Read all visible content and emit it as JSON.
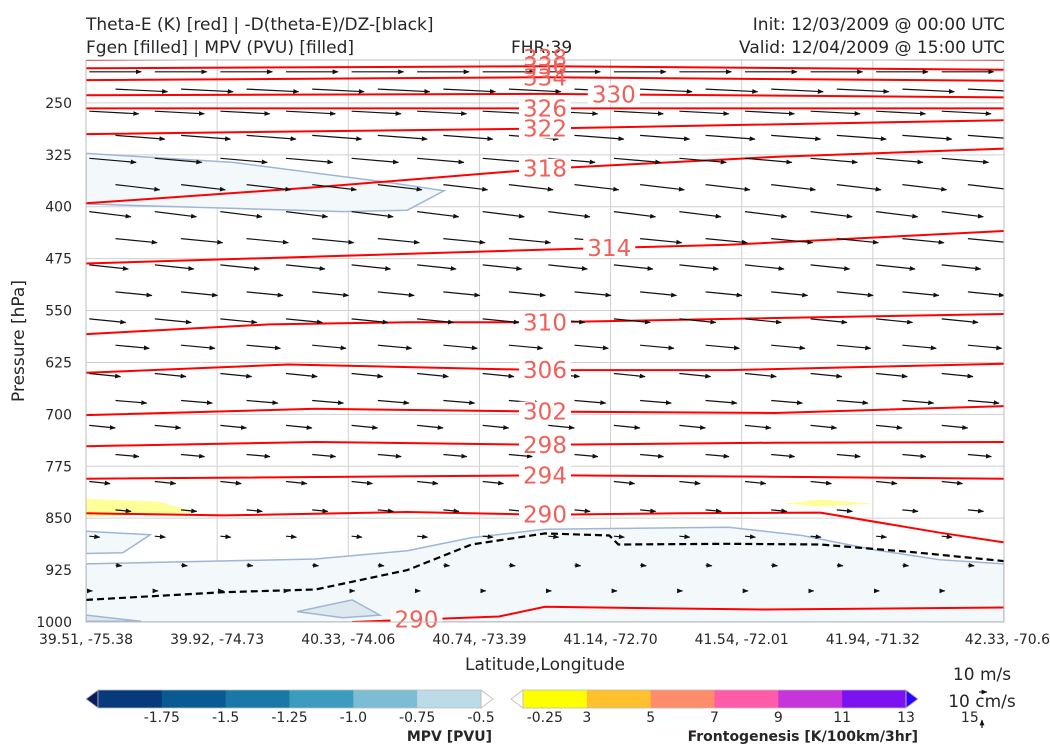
{
  "titles": {
    "left_line1": "Theta-E (K) [red] | -D(theta-E)/DZ-[black]",
    "left_line2": "Fgen [filled] | MPV (PVU) [filled]",
    "center": "FHR:39",
    "right_line1": "Init: 12/03/2009 @ 00:00 UTC",
    "right_line2": "Valid: 12/04/2009 @ 15:00 UTC"
  },
  "chart_data": {
    "type": "cross-section",
    "xlabel": "Latitude,Longitude",
    "ylabel": "Pressure [hPa]",
    "ylim": [
      1000,
      188
    ],
    "x_ticks": [
      "39.51, -75.38",
      "39.92, -74.73",
      "40.33, -74.06",
      "40.74, -73.39",
      "41.14, -72.70",
      "41.54, -72.01",
      "41.94, -71.32",
      "42.33, -70.6"
    ],
    "y_ticks": [
      250,
      325,
      400,
      475,
      550,
      625,
      700,
      775,
      850,
      925,
      1000
    ],
    "grid": true,
    "theta_e_contours": {
      "color": "#ff0000",
      "levels": [
        {
          "label": "338",
          "points": [
            [
              0,
              188
            ],
            [
              0.5,
              185
            ],
            [
              1,
              188
            ]
          ]
        },
        {
          "label": "336",
          "points": [
            [
              0,
              200
            ],
            [
              0.5,
              197
            ],
            [
              1,
              202
            ]
          ]
        },
        {
          "label": "334",
          "points": [
            [
              0,
              217
            ],
            [
              0.5,
              213
            ],
            [
              1,
              218
            ]
          ]
        },
        {
          "label": "330",
          "points": [
            [
              0,
              239
            ],
            [
              0.5,
              237
            ],
            [
              1,
              242
            ]
          ]
        },
        {
          "label": "326",
          "points": [
            [
              0,
              258
            ],
            [
              0.5,
              258
            ],
            [
              1,
              258
            ]
          ]
        },
        {
          "label": "322",
          "points": [
            [
              0,
              295
            ],
            [
              0.5,
              287
            ],
            [
              1,
              275
            ]
          ]
        },
        {
          "label": "318",
          "points": [
            [
              0,
              395
            ],
            [
              0.25,
              372
            ],
            [
              0.5,
              345
            ],
            [
              0.75,
              328
            ],
            [
              1,
              316
            ]
          ]
        },
        {
          "label": "314",
          "points": [
            [
              0,
              482
            ],
            [
              0.25,
              472
            ],
            [
              0.5,
              462
            ],
            [
              0.7,
              455
            ],
            [
              1,
              435
            ]
          ]
        },
        {
          "label": "310",
          "points": [
            [
              0,
              584
            ],
            [
              0.2,
              570
            ],
            [
              0.35,
              567
            ],
            [
              0.5,
              567
            ],
            [
              0.7,
              562
            ],
            [
              1,
              555
            ]
          ]
        },
        {
          "label": "306",
          "points": [
            [
              0,
              640
            ],
            [
              0.22,
              628
            ],
            [
              0.5,
              636
            ],
            [
              0.7,
              636
            ],
            [
              1,
              627
            ]
          ]
        },
        {
          "label": "302",
          "points": [
            [
              0,
              701
            ],
            [
              0.25,
              692
            ],
            [
              0.5,
              696
            ],
            [
              0.75,
              698
            ],
            [
              1,
              688
            ]
          ]
        },
        {
          "label": "298",
          "points": [
            [
              0,
              746
            ],
            [
              0.25,
              740
            ],
            [
              0.5,
              744
            ],
            [
              0.75,
              741
            ],
            [
              1,
              740
            ]
          ]
        },
        {
          "label": "294",
          "points": [
            [
              0,
              793
            ],
            [
              0.5,
              788
            ],
            [
              0.75,
              790
            ],
            [
              1,
              793
            ]
          ]
        },
        {
          "label": "290",
          "points": [
            [
              0,
              843
            ],
            [
              0.15,
              846
            ],
            [
              0.35,
              841
            ],
            [
              0.5,
              845
            ],
            [
              0.65,
              843
            ],
            [
              0.8,
              842
            ],
            [
              0.93,
              871
            ],
            [
              1,
              885
            ]
          ]
        },
        {
          "label": "290",
          "points": [
            [
              0.29,
              1000
            ],
            [
              0.45,
              992
            ],
            [
              0.5,
              978
            ],
            [
              0.62,
              980
            ],
            [
              0.74,
              982
            ],
            [
              1,
              979
            ]
          ]
        }
      ]
    },
    "dthetae_dz_contour": {
      "color": "#000000",
      "style": "dashed",
      "points": [
        [
          0,
          968
        ],
        [
          0.15,
          957
        ],
        [
          0.25,
          953
        ],
        [
          0.35,
          925
        ],
        [
          0.42,
          888
        ],
        [
          0.5,
          872
        ],
        [
          0.57,
          875
        ],
        [
          0.58,
          888
        ],
        [
          0.7,
          887
        ],
        [
          0.8,
          888
        ],
        [
          0.9,
          899
        ],
        [
          1,
          912
        ]
      ]
    },
    "mpv_fill_regions": [
      {
        "color": "#f3f9fb",
        "points": [
          [
            0,
            323
          ],
          [
            0.16,
            336
          ],
          [
            0.33,
            365
          ],
          [
            0.39,
            377
          ],
          [
            0.35,
            405
          ],
          [
            0.28,
            407
          ],
          [
            0,
            396
          ]
        ]
      },
      {
        "color": "#f3f9fb",
        "points": [
          [
            0,
            916
          ],
          [
            0.25,
            909
          ],
          [
            0.35,
            897
          ],
          [
            0.42,
            878
          ],
          [
            0.5,
            866
          ],
          [
            0.7,
            863
          ],
          [
            0.78,
            875
          ],
          [
            0.86,
            896
          ],
          [
            0.93,
            910
          ],
          [
            1,
            916
          ],
          [
            1,
            1000
          ],
          [
            0,
            1000
          ]
        ]
      },
      {
        "color": "#f3f9fb",
        "points": [
          [
            0,
            869
          ],
          [
            0.07,
            874
          ],
          [
            0.04,
            900
          ],
          [
            0,
            901
          ]
        ]
      },
      {
        "color": "#dde9ef",
        "points": [
          [
            0.23,
            985
          ],
          [
            0.29,
            968
          ],
          [
            0.32,
            990
          ],
          [
            0.28,
            994
          ]
        ]
      },
      {
        "color": "#dde9ef",
        "points": [
          [
            0,
            990
          ],
          [
            0.06,
            999
          ],
          [
            0,
            999
          ]
        ]
      }
    ],
    "fgen_fill_regions": [
      {
        "color": "#ffff99",
        "points": [
          [
            0,
            822
          ],
          [
            0.08,
            826
          ],
          [
            0.12,
            842
          ],
          [
            0,
            848
          ]
        ]
      },
      {
        "color": "#ffff99",
        "points": [
          [
            0.76,
            829
          ],
          [
            0.8,
            823
          ],
          [
            0.86,
            829
          ],
          [
            0.8,
            833
          ]
        ]
      }
    ],
    "wind_vector_rows": [
      {
        "p": 205,
        "u": 1.0,
        "v": 0.0
      },
      {
        "p": 230,
        "u": 1.0,
        "v": 0.05
      },
      {
        "p": 262,
        "u": 0.95,
        "v": 0.05
      },
      {
        "p": 297,
        "u": 0.95,
        "v": 0.07
      },
      {
        "p": 330,
        "u": 0.9,
        "v": 0.08
      },
      {
        "p": 368,
        "u": 0.85,
        "v": 0.1
      },
      {
        "p": 407,
        "u": 0.8,
        "v": 0.1
      },
      {
        "p": 446,
        "u": 0.8,
        "v": 0.08
      },
      {
        "p": 484,
        "u": 0.75,
        "v": 0.08
      },
      {
        "p": 523,
        "u": 0.7,
        "v": 0.07
      },
      {
        "p": 562,
        "u": 0.7,
        "v": 0.07
      },
      {
        "p": 600,
        "u": 0.65,
        "v": 0.06
      },
      {
        "p": 641,
        "u": 0.6,
        "v": 0.06
      },
      {
        "p": 680,
        "u": 0.6,
        "v": 0.05
      },
      {
        "p": 716,
        "u": 0.5,
        "v": 0.05
      },
      {
        "p": 758,
        "u": 0.45,
        "v": 0.04
      },
      {
        "p": 797,
        "u": 0.4,
        "v": 0.04
      },
      {
        "p": 838,
        "u": 0.3,
        "v": 0.03
      },
      {
        "p": 876,
        "u": 0.2,
        "v": 0.02
      },
      {
        "p": 918,
        "u": 0.12,
        "v": 0.01
      },
      {
        "p": 955,
        "u": 0.06,
        "v": 0.0
      }
    ],
    "wind_reference": {
      "u_label": "10 m/s",
      "w_label": "10 cm/s"
    },
    "colorbars": [
      {
        "name": "MPV [PVU]",
        "colors": [
          "#071d5e",
          "#073a7a",
          "#095a93",
          "#1a78a6",
          "#3c9cbf",
          "#7cbcd4",
          "#bddbe6",
          "#ffffff"
        ],
        "ticks": [
          "-1.75",
          "-1.5",
          "-1.25",
          "-1.0",
          "-0.75",
          "-0.5",
          "-0.25"
        ]
      },
      {
        "name": "Frontogenesis [K/100km/3hr]",
        "colors": [
          "#ffffff",
          "#ffff00",
          "#ffc02e",
          "#ff8c6b",
          "#ff5ba9",
          "#c834dc",
          "#7c11f2",
          "#2d06ff"
        ],
        "ticks": [
          "3",
          "5",
          "7",
          "9",
          "11",
          "13",
          "15"
        ]
      }
    ]
  }
}
